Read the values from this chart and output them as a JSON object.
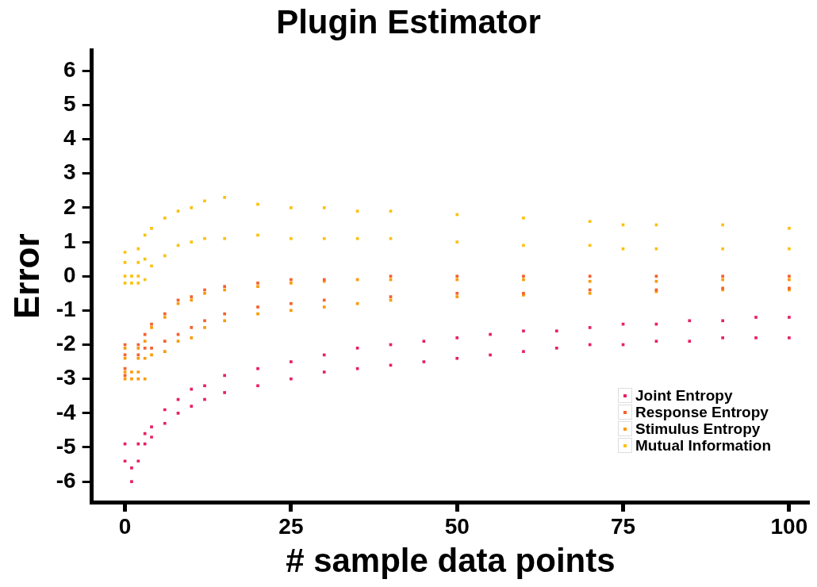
{
  "chart_data": {
    "type": "scatter",
    "title": "Plugin Estimator",
    "xlabel": "# sample data points",
    "ylabel": "Error",
    "xlim": [
      -5,
      103
    ],
    "ylim": [
      -6.6,
      6.6
    ],
    "xticks": [
      0,
      25,
      50,
      75,
      100
    ],
    "yticks": [
      -6,
      -5,
      -4,
      -3,
      -2,
      -1,
      0,
      1,
      2,
      3,
      4,
      5,
      6
    ],
    "grid": false,
    "legend": "bottom right",
    "marker": "square",
    "series": [
      {
        "name": "Joint Entropy",
        "color": "#e8215f",
        "x": [
          0,
          0,
          1,
          1,
          2,
          2,
          3,
          3,
          4,
          4,
          6,
          6,
          8,
          8,
          10,
          10,
          12,
          12,
          15,
          15,
          20,
          20,
          25,
          25,
          30,
          30,
          35,
          35,
          40,
          40,
          45,
          45,
          50,
          50,
          55,
          55,
          60,
          60,
          65,
          65,
          70,
          70,
          75,
          75,
          80,
          80,
          85,
          85,
          90,
          90,
          95,
          95,
          100,
          100
        ],
        "values": [
          -5.4,
          -4.9,
          -6.0,
          -5.6,
          -5.4,
          -4.9,
          -4.9,
          -4.6,
          -4.7,
          -4.4,
          -4.3,
          -3.9,
          -4.0,
          -3.6,
          -3.8,
          -3.3,
          -3.6,
          -3.2,
          -3.4,
          -2.9,
          -3.2,
          -2.7,
          -3.0,
          -2.5,
          -2.8,
          -2.3,
          -2.7,
          -2.1,
          -2.6,
          -2.0,
          -2.5,
          -1.9,
          -2.4,
          -1.8,
          -2.3,
          -1.7,
          -2.2,
          -1.6,
          -2.1,
          -1.6,
          -2.0,
          -1.5,
          -2.0,
          -1.4,
          -1.9,
          -1.4,
          -1.9,
          -1.3,
          -1.8,
          -1.3,
          -1.8,
          -1.2,
          -1.8,
          -1.2
        ]
      },
      {
        "name": "Response Entropy",
        "color": "#f5612c",
        "x": [
          0,
          0,
          0,
          0,
          2,
          2,
          3,
          3,
          4,
          4,
          6,
          6,
          8,
          8,
          10,
          10,
          12,
          12,
          15,
          15,
          20,
          20,
          25,
          25,
          30,
          30,
          40,
          40,
          50,
          50,
          60,
          60,
          70,
          70,
          80,
          80,
          90,
          90,
          100,
          100
        ],
        "values": [
          -2.9,
          -2.7,
          -2.3,
          -2.0,
          -2.3,
          -2.0,
          -2.1,
          -1.7,
          -2.1,
          -1.4,
          -1.9,
          -1.1,
          -1.7,
          -0.7,
          -1.5,
          -0.6,
          -1.3,
          -0.4,
          -1.1,
          -0.3,
          -0.9,
          -0.2,
          -0.8,
          -0.1,
          -0.7,
          -0.1,
          -0.6,
          0.0,
          -0.5,
          0.0,
          -0.5,
          0.0,
          -0.4,
          0.0,
          -0.4,
          0.0,
          -0.35,
          0.0,
          -0.35,
          0.0
        ]
      },
      {
        "name": "Stimulus Entropy",
        "color": "#fb9a06",
        "x": [
          0,
          0,
          0,
          0,
          1,
          1,
          2,
          2,
          2,
          2,
          3,
          3,
          3,
          4,
          4,
          6,
          6,
          8,
          8,
          10,
          10,
          12,
          12,
          15,
          15,
          20,
          20,
          25,
          25,
          30,
          30,
          35,
          35,
          40,
          40,
          50,
          50,
          60,
          60,
          70,
          70,
          80,
          80,
          90,
          90,
          100,
          100
        ],
        "values": [
          -3.0,
          -2.8,
          -2.4,
          -2.1,
          -3.0,
          -2.8,
          -3.0,
          -2.8,
          -2.4,
          -2.1,
          -3.0,
          -2.4,
          -1.9,
          -2.3,
          -1.5,
          -2.2,
          -1.2,
          -1.9,
          -0.8,
          -1.8,
          -0.7,
          -1.5,
          -0.5,
          -1.3,
          -0.4,
          -1.1,
          -0.3,
          -1.0,
          -0.2,
          -0.9,
          -0.15,
          -0.8,
          -0.1,
          -0.7,
          -0.1,
          -0.6,
          -0.1,
          -0.55,
          -0.1,
          -0.5,
          -0.15,
          -0.45,
          -0.15,
          -0.4,
          -0.1,
          -0.4,
          -0.1
        ]
      },
      {
        "name": "Mutual Information",
        "color": "#fcc10e",
        "x": [
          0,
          0,
          0,
          0,
          1,
          1,
          2,
          2,
          2,
          2,
          3,
          3,
          3,
          4,
          4,
          6,
          6,
          8,
          8,
          10,
          10,
          12,
          12,
          15,
          15,
          20,
          20,
          25,
          25,
          30,
          30,
          35,
          35,
          40,
          40,
          50,
          50,
          60,
          60,
          70,
          70,
          75,
          75,
          80,
          80,
          90,
          90,
          100,
          100
        ],
        "values": [
          -0.2,
          0.0,
          0.4,
          0.7,
          -0.2,
          0.0,
          -0.2,
          0.0,
          0.4,
          0.8,
          -0.1,
          0.5,
          1.2,
          0.3,
          1.4,
          0.6,
          1.7,
          0.9,
          1.9,
          1.0,
          2.0,
          1.1,
          2.2,
          1.1,
          2.3,
          1.2,
          2.1,
          1.1,
          2.0,
          1.1,
          2.0,
          1.1,
          1.9,
          1.1,
          1.9,
          1.0,
          1.8,
          0.9,
          1.7,
          0.9,
          1.6,
          0.8,
          1.5,
          0.8,
          1.5,
          0.8,
          1.5,
          0.8,
          1.4
        ]
      }
    ]
  }
}
